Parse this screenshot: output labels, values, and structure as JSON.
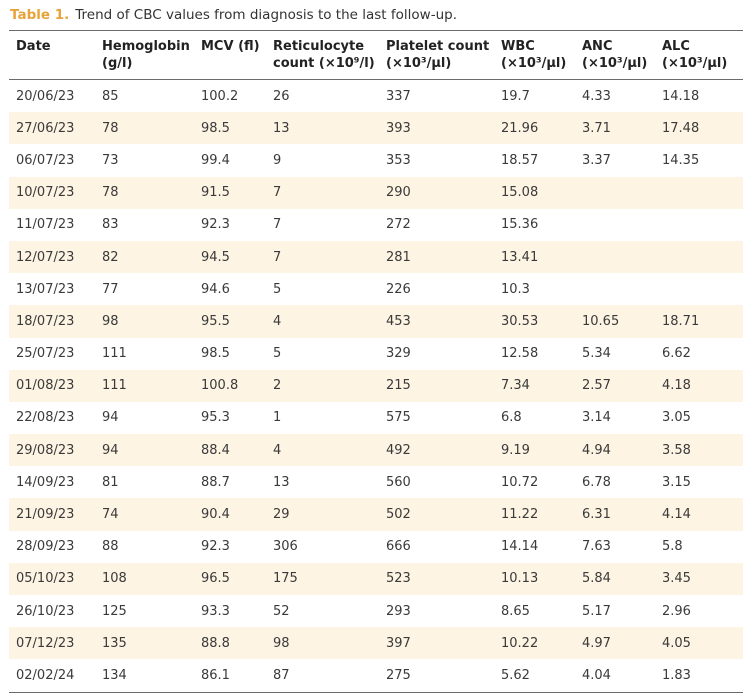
{
  "caption": {
    "label": "Table 1.",
    "text": "Trend of CBC values from diagnosis to the last follow-up."
  },
  "colors": {
    "accent": "#e8a33a",
    "stripe": "#fdf4e3",
    "rule": "#6b6b6b"
  },
  "table": {
    "headers": [
      [
        "Date",
        ""
      ],
      [
        "Hemoglobin",
        "(g/l)"
      ],
      [
        "MCV (fl)",
        ""
      ],
      [
        "Reticulocyte",
        "count (×10⁹/l)"
      ],
      [
        "Platelet count",
        "(×10³/µl)"
      ],
      [
        "WBC",
        "(×10³/µl)"
      ],
      [
        "ANC",
        "(×10³/µl)"
      ],
      [
        "ALC",
        "(×10³/µl)"
      ]
    ],
    "rows": [
      [
        "20/06/23",
        "85",
        "100.2",
        "26",
        "337",
        "19.7",
        "4.33",
        "14.18"
      ],
      [
        "27/06/23",
        "78",
        "98.5",
        "13",
        "393",
        "21.96",
        "3.71",
        "17.48"
      ],
      [
        "06/07/23",
        "73",
        "99.4",
        "9",
        "353",
        "18.57",
        "3.37",
        "14.35"
      ],
      [
        "10/07/23",
        "78",
        "91.5",
        "7",
        "290",
        "15.08",
        "",
        ""
      ],
      [
        "11/07/23",
        "83",
        "92.3",
        "7",
        "272",
        "15.36",
        "",
        ""
      ],
      [
        "12/07/23",
        "82",
        "94.5",
        "7",
        "281",
        "13.41",
        "",
        ""
      ],
      [
        "13/07/23",
        "77",
        "94.6",
        "5",
        "226",
        "10.3",
        "",
        ""
      ],
      [
        "18/07/23",
        "98",
        "95.5",
        "4",
        "453",
        "30.53",
        "10.65",
        "18.71"
      ],
      [
        "25/07/23",
        "111",
        "98.5",
        "5",
        "329",
        "12.58",
        "5.34",
        "6.62"
      ],
      [
        "01/08/23",
        "111",
        "100.8",
        "2",
        "215",
        "7.34",
        "2.57",
        "4.18"
      ],
      [
        "22/08/23",
        "94",
        "95.3",
        "1",
        "575",
        "6.8",
        "3.14",
        "3.05"
      ],
      [
        "29/08/23",
        "94",
        "88.4",
        "4",
        "492",
        "9.19",
        "4.94",
        "3.58"
      ],
      [
        "14/09/23",
        "81",
        "88.7",
        "13",
        "560",
        "10.72",
        "6.78",
        "3.15"
      ],
      [
        "21/09/23",
        "74",
        "90.4",
        "29",
        "502",
        "11.22",
        "6.31",
        "4.14"
      ],
      [
        "28/09/23",
        "88",
        "92.3",
        "306",
        "666",
        "14.14",
        "7.63",
        "5.8"
      ],
      [
        "05/10/23",
        "108",
        "96.5",
        "175",
        "523",
        "10.13",
        "5.84",
        "3.45"
      ],
      [
        "26/10/23",
        "125",
        "93.3",
        "52",
        "293",
        "8.65",
        "5.17",
        "2.96"
      ],
      [
        "07/12/23",
        "135",
        "88.8",
        "98",
        "397",
        "10.22",
        "4.97",
        "4.05"
      ],
      [
        "02/02/24",
        "134",
        "86.1",
        "87",
        "275",
        "5.62",
        "4.04",
        "1.83"
      ]
    ]
  }
}
